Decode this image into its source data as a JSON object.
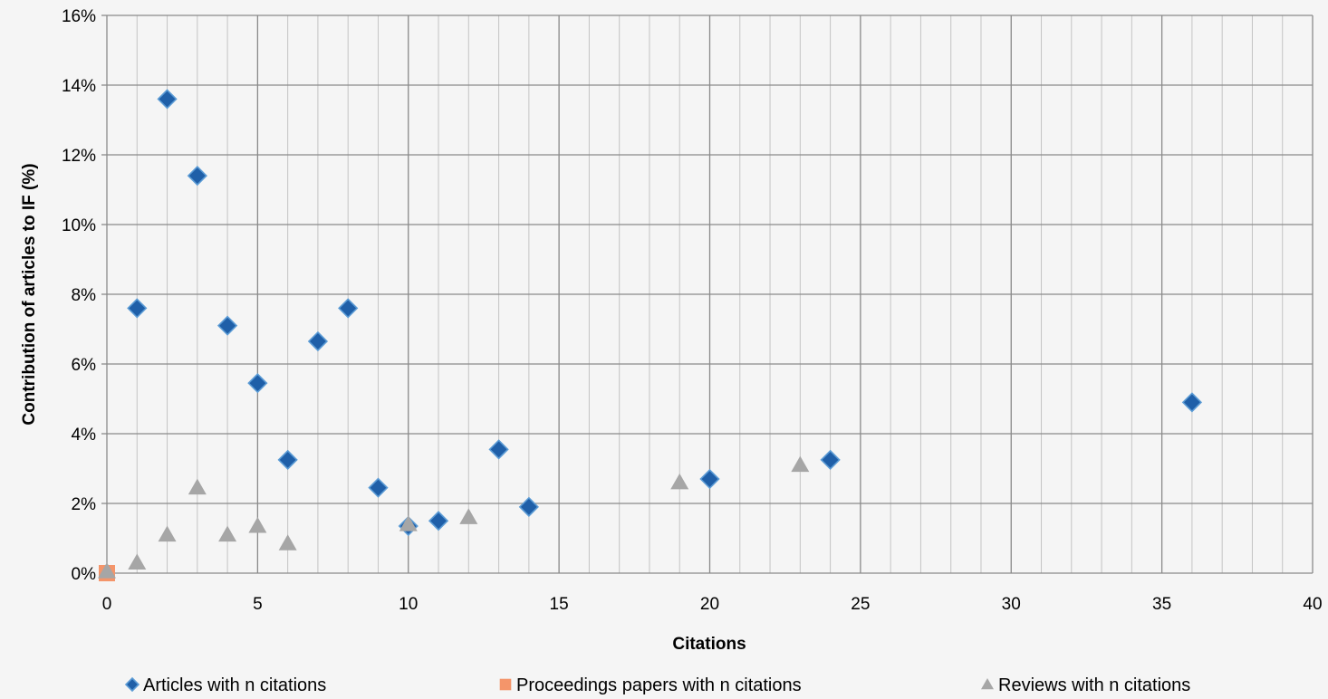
{
  "chart_data": {
    "type": "scatter",
    "xlabel": "Citations",
    "ylabel": "Contribution of articles to IF (%)",
    "xlim": [
      0,
      40
    ],
    "ylim": [
      0,
      16
    ],
    "x_major_ticks": [
      0,
      5,
      10,
      15,
      20,
      25,
      30,
      35,
      40
    ],
    "x_minor_step": 1,
    "y_ticks": [
      0,
      2,
      4,
      6,
      8,
      10,
      12,
      14,
      16
    ],
    "y_tick_format": "percent",
    "grid": true,
    "legend_position": "bottom",
    "series": [
      {
        "name": "Articles with n citations",
        "marker": "diamond",
        "color": "#1f5fa8",
        "points": [
          [
            1,
            7.6
          ],
          [
            2,
            13.6
          ],
          [
            3,
            11.4
          ],
          [
            4,
            7.1
          ],
          [
            5,
            5.45
          ],
          [
            6,
            3.25
          ],
          [
            7,
            6.65
          ],
          [
            8,
            7.6
          ],
          [
            9,
            2.45
          ],
          [
            10,
            1.35
          ],
          [
            11,
            1.5
          ],
          [
            13,
            3.55
          ],
          [
            14,
            1.9
          ],
          [
            20,
            2.7
          ],
          [
            24,
            3.25
          ],
          [
            36,
            4.9
          ]
        ]
      },
      {
        "name": "Proceedings papers with n citations",
        "marker": "square",
        "color": "#f4956a",
        "points": [
          [
            0,
            0
          ]
        ]
      },
      {
        "name": "Reviews with n citations",
        "marker": "triangle",
        "color": "#a6a6a6",
        "points": [
          [
            0,
            0.05
          ],
          [
            1,
            0.3
          ],
          [
            2,
            1.1
          ],
          [
            3,
            2.45
          ],
          [
            4,
            1.1
          ],
          [
            5,
            1.35
          ],
          [
            6,
            0.85
          ],
          [
            10,
            1.4
          ],
          [
            12,
            1.6
          ],
          [
            19,
            2.6
          ],
          [
            23,
            3.1
          ]
        ]
      }
    ]
  }
}
